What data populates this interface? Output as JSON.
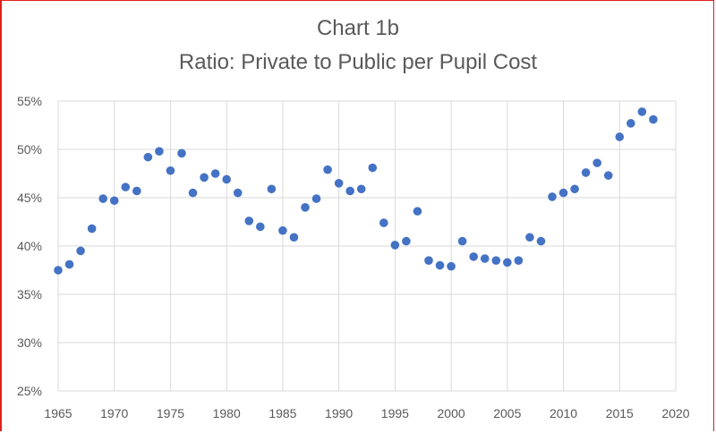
{
  "chart_data": {
    "type": "scatter",
    "title": "Chart 1b",
    "subtitle": "Ratio: Private to Public per Pupil Cost",
    "xlabel": "",
    "ylabel": "",
    "xlim": [
      1965,
      2020
    ],
    "ylim": [
      0.25,
      0.55
    ],
    "x_ticks": [
      "1965",
      "1970",
      "1975",
      "1980",
      "1985",
      "1990",
      "1995",
      "2000",
      "2005",
      "2010",
      "2015",
      "2020"
    ],
    "y_ticks": [
      "25%",
      "30%",
      "35%",
      "40%",
      "45%",
      "50%",
      "55%"
    ],
    "grid": true,
    "legend": "none",
    "marker_color": "#4472c4",
    "series": [
      {
        "x": [
          1965,
          1966,
          1967,
          1968,
          1969,
          1970,
          1971,
          1972,
          1973,
          1974,
          1975,
          1976,
          1977,
          1978,
          1979,
          1980,
          1981,
          1982,
          1983,
          1984,
          1985,
          1986,
          1987,
          1988,
          1989,
          1990,
          1991,
          1992,
          1993,
          1994,
          1995,
          1996,
          1997,
          1998,
          1999,
          2000,
          2001,
          2002,
          2003,
          2004,
          2005,
          2006,
          2007,
          2008,
          2009,
          2010,
          2011,
          2012,
          2013,
          2014,
          2015,
          2016,
          2017,
          2018
        ],
        "y": [
          0.375,
          0.381,
          0.395,
          0.418,
          0.449,
          0.447,
          0.461,
          0.457,
          0.492,
          0.498,
          0.478,
          0.496,
          0.455,
          0.471,
          0.475,
          0.469,
          0.455,
          0.426,
          0.42,
          0.459,
          0.416,
          0.409,
          0.44,
          0.449,
          0.479,
          0.465,
          0.457,
          0.459,
          0.481,
          0.424,
          0.401,
          0.405,
          0.436,
          0.385,
          0.38,
          0.379,
          0.405,
          0.389,
          0.387,
          0.385,
          0.383,
          0.385,
          0.409,
          0.405,
          0.451,
          0.455,
          0.459,
          0.476,
          0.486,
          0.473,
          0.513,
          0.527,
          0.539,
          0.531
        ]
      }
    ]
  }
}
